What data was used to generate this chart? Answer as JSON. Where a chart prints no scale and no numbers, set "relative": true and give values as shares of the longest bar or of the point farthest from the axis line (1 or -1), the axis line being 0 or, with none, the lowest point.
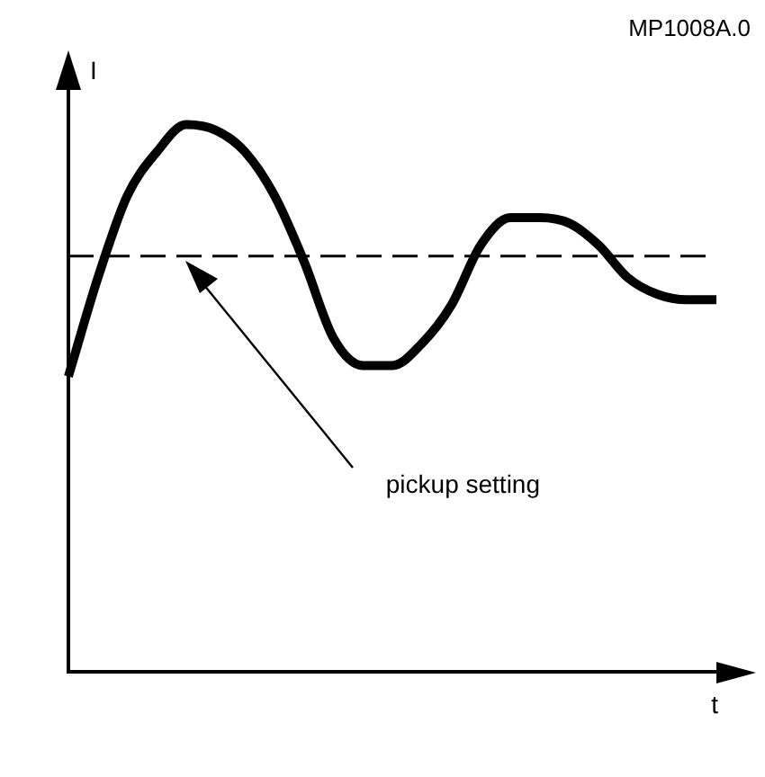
{
  "chart_data": {
    "type": "line",
    "relative": true,
    "xlabel": "t",
    "ylabel": "I",
    "annotations": [
      "MP1008A.0"
    ],
    "categories": [
      null,
      null,
      null,
      null,
      null,
      null,
      null,
      null,
      null,
      null,
      null,
      null,
      null,
      null,
      null,
      null,
      null,
      null,
      null,
      null,
      null,
      null,
      null
    ],
    "series": [
      {
        "color": "#000000",
        "values": [
          0.54,
          0.72,
          0.87,
          0.95,
          1.0,
          0.99,
          0.95,
          0.87,
          0.75,
          0.61,
          0.56,
          0.56,
          0.6,
          0.67,
          0.78,
          0.83,
          0.83,
          0.82,
          0.78,
          0.72,
          0.69,
          0.68,
          0.68
        ]
      }
    ],
    "ref_lines": [
      {
        "axis": "y",
        "value": 0.76,
        "label": "pickup setting",
        "color": "#000000",
        "line_style": "dashed"
      }
    ],
    "grid": false,
    "legend": false,
    "marker": "none",
    "line_style": "solid"
  }
}
